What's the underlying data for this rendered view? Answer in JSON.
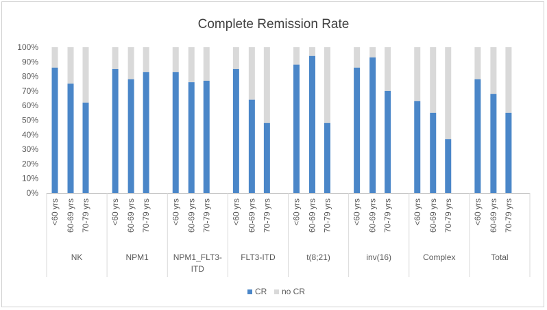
{
  "chart_data": {
    "type": "bar",
    "stacked": "percent",
    "title": "Complete Remission Rate",
    "yticks": [
      "0%",
      "10%",
      "20%",
      "30%",
      "40%",
      "50%",
      "60%",
      "70%",
      "80%",
      "90%",
      "100%"
    ],
    "ylim": [
      0,
      100
    ],
    "grid": false,
    "legend_position": "bottom",
    "age_labels": [
      "<60 yrs",
      "60-69 yrs",
      "70-79 yrs"
    ],
    "groups": [
      {
        "label": "NK",
        "cr": [
          86,
          75,
          62
        ]
      },
      {
        "label": "NPM1",
        "cr": [
          85,
          78,
          83
        ]
      },
      {
        "label": "NPM1_FLT3-ITD",
        "label_lines": [
          "NPM1_FLT3-",
          "ITD"
        ],
        "cr": [
          83,
          76,
          77
        ]
      },
      {
        "label": "FLT3-ITD",
        "cr": [
          85,
          64,
          48
        ]
      },
      {
        "label": "t(8;21)",
        "cr": [
          88,
          94,
          48
        ]
      },
      {
        "label": "inv(16)",
        "cr": [
          86,
          93,
          70
        ]
      },
      {
        "label": "Complex",
        "cr": [
          63,
          55,
          37
        ]
      },
      {
        "label": "Total",
        "cr": [
          78,
          68,
          55
        ]
      }
    ],
    "series": [
      {
        "name": "CR",
        "color": "#4a86c8"
      },
      {
        "name": "no CR",
        "color": "#d9d9d9"
      }
    ]
  }
}
